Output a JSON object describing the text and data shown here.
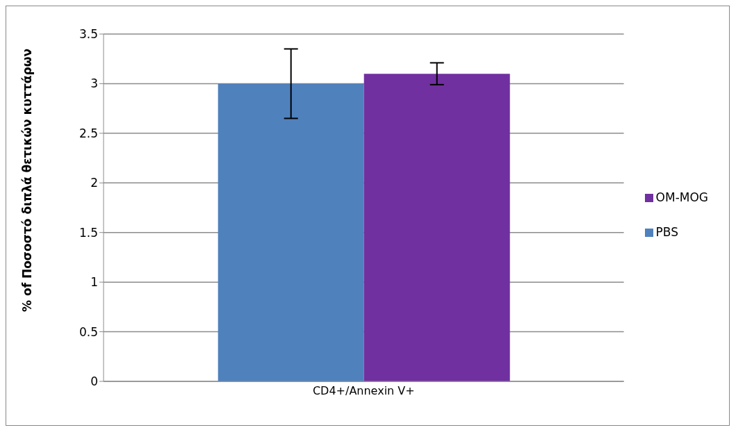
{
  "chart_data": {
    "type": "bar",
    "ylabel": "% of Ποσοστό διπλά θετικών κυττάρων",
    "categories": [
      "CD4+/Annexin V+"
    ],
    "series": [
      {
        "name": "PBS",
        "color": "#4f81bd",
        "values": [
          3.0
        ],
        "errors": [
          0.35
        ]
      },
      {
        "name": "OM-MOG",
        "color": "#7030a0",
        "values": [
          3.1
        ],
        "errors": [
          0.11
        ]
      }
    ],
    "ylim": [
      0,
      3.5
    ],
    "yticks": [
      0,
      0.5,
      1,
      1.5,
      2,
      2.5,
      3,
      3.5
    ],
    "grid": "y",
    "legend": "right"
  }
}
